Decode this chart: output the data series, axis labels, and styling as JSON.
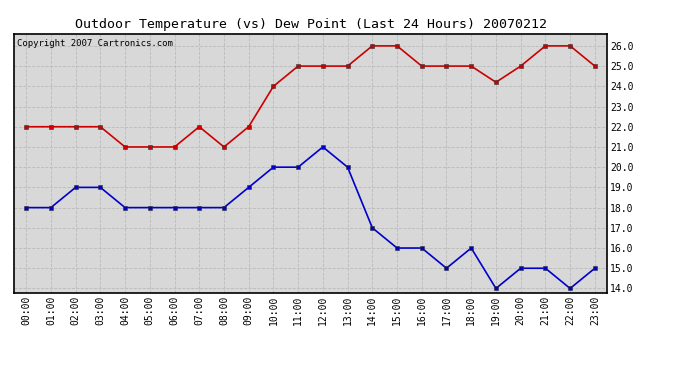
{
  "title": "Outdoor Temperature (vs) Dew Point (Last 24 Hours) 20070212",
  "copyright_text": "Copyright 2007 Cartronics.com",
  "hours": [
    "00:00",
    "01:00",
    "02:00",
    "03:00",
    "04:00",
    "05:00",
    "06:00",
    "07:00",
    "08:00",
    "09:00",
    "10:00",
    "11:00",
    "12:00",
    "13:00",
    "14:00",
    "15:00",
    "16:00",
    "17:00",
    "18:00",
    "19:00",
    "20:00",
    "21:00",
    "22:00",
    "23:00"
  ],
  "temp_red": [
    22.0,
    22.0,
    22.0,
    22.0,
    21.0,
    21.0,
    21.0,
    22.0,
    21.0,
    22.0,
    24.0,
    25.0,
    25.0,
    25.0,
    26.0,
    26.0,
    25.0,
    25.0,
    25.0,
    24.2,
    25.0,
    26.0,
    26.0,
    25.0
  ],
  "dew_blue": [
    18.0,
    18.0,
    19.0,
    19.0,
    18.0,
    18.0,
    18.0,
    18.0,
    18.0,
    19.0,
    20.0,
    20.0,
    21.0,
    20.0,
    17.0,
    16.0,
    16.0,
    15.0,
    16.0,
    14.0,
    15.0,
    15.0,
    14.0,
    15.0
  ],
  "ylim_min": 13.8,
  "ylim_max": 26.6,
  "yticks": [
    14.0,
    15.0,
    16.0,
    17.0,
    18.0,
    19.0,
    20.0,
    21.0,
    22.0,
    23.0,
    24.0,
    25.0,
    26.0
  ],
  "red_color": "#cc0000",
  "blue_color": "#0000cc",
  "bg_color": "#d8d8d8",
  "grid_color": "#bbbbbb",
  "title_fontsize": 9.5,
  "copyright_fontsize": 6.5,
  "tick_fontsize": 7,
  "ytick_fontsize": 7
}
